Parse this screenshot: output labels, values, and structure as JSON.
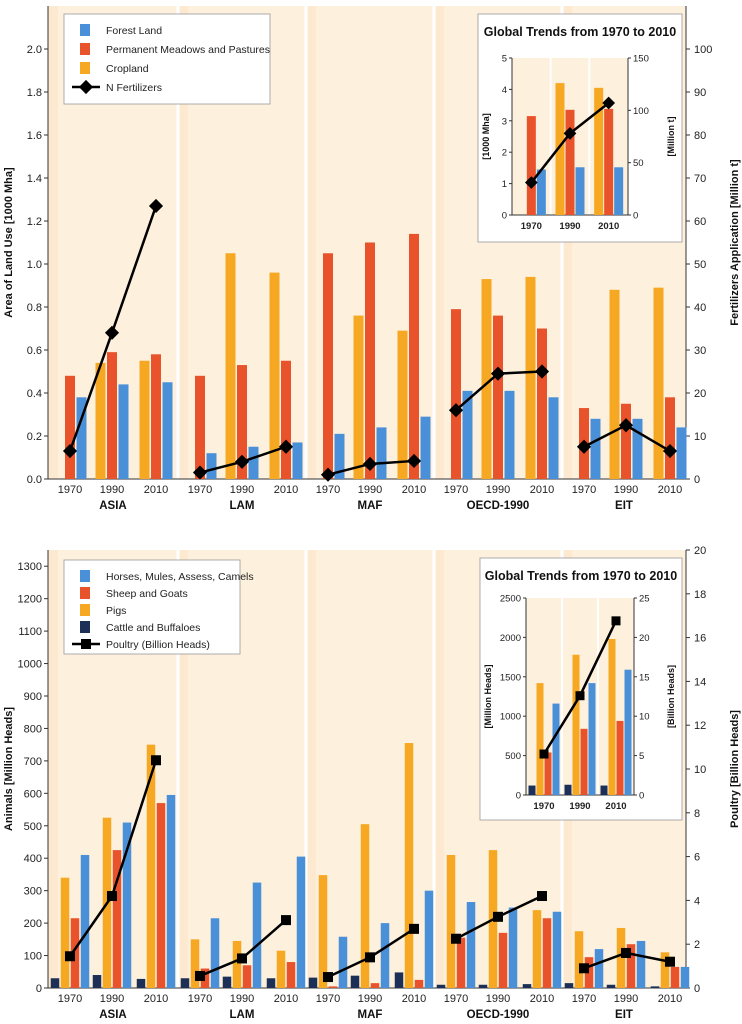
{
  "chart_data": [
    {
      "type": "bar",
      "panel": "land_use",
      "ylabel": "Area of Land Use [1000 Mha]",
      "y2label": "Fertilizers Application [Million t]",
      "ylim": [
        0,
        2.2
      ],
      "yticks": [
        "0.0",
        "0.2",
        "0.4",
        "0.6",
        "0.8",
        "1.0",
        "1.2",
        "1.4",
        "1.6",
        "1.8",
        "2.0"
      ],
      "y2lim": [
        0,
        110
      ],
      "y2ticks": [
        "0",
        "10",
        "20",
        "30",
        "40",
        "50",
        "60",
        "70",
        "80",
        "90",
        "100"
      ],
      "years": [
        "1970",
        "1990",
        "2010"
      ],
      "legend": [
        {
          "name": "Forest Land",
          "color": "#4a90d9"
        },
        {
          "name": "Permanent Meadows and Pastures",
          "color": "#e8532b"
        },
        {
          "name": "Cropland",
          "color": "#f7a823"
        },
        {
          "name": "N Fertilizers",
          "color": "#000000"
        }
      ],
      "regions": [
        {
          "name": "ASIA",
          "bars": [
            [
              0.38,
              0.48,
              null
            ],
            [
              0.44,
              0.59,
              0.54
            ],
            [
              0.45,
              0.58,
              0.55
            ]
          ],
          "line": [
            6.5,
            34,
            63.5
          ]
        },
        {
          "name": "LAM",
          "bars": [
            [
              0.12,
              0.48,
              null
            ],
            [
              0.15,
              0.53,
              1.05
            ],
            [
              0.17,
              0.55,
              0.96
            ]
          ],
          "line": [
            1.5,
            4,
            7.5
          ]
        },
        {
          "name": "MAF",
          "bars": [
            [
              0.21,
              1.05,
              null
            ],
            [
              0.24,
              1.1,
              0.76
            ],
            [
              0.29,
              1.14,
              0.69
            ]
          ],
          "line": [
            1.0,
            3.5,
            4.2
          ]
        },
        {
          "name": "OECD-1990",
          "bars": [
            [
              0.41,
              0.79,
              null
            ],
            [
              0.41,
              0.76,
              0.93
            ],
            [
              0.38,
              0.7,
              0.94
            ]
          ],
          "line": [
            16,
            24.5,
            25
          ]
        },
        {
          "name": "EIT",
          "bars": [
            [
              0.28,
              0.33,
              null
            ],
            [
              0.28,
              0.35,
              0.88
            ],
            [
              0.24,
              0.38,
              0.89
            ]
          ],
          "line": [
            7.5,
            12.5,
            6.5
          ]
        }
      ],
      "inset": {
        "title": "Global Trends from 1970 to 2010",
        "ylabel": "[1000 Mha]",
        "y2label": "[Million t]",
        "ylim": [
          0,
          5
        ],
        "yticks": [
          "0",
          "1",
          "2",
          "3",
          "4",
          "5"
        ],
        "y2lim": [
          0,
          150
        ],
        "y2ticks": [
          "0",
          "50",
          "100",
          "150"
        ],
        "bars": [
          [
            1.45,
            3.15,
            null
          ],
          [
            1.52,
            3.35,
            4.2
          ],
          [
            1.52,
            3.38,
            4.05
          ]
        ],
        "line": [
          31,
          78,
          107
        ]
      }
    },
    {
      "type": "bar",
      "panel": "livestock",
      "ylabel": "Animals [Million Heads]",
      "y2label": "Poultry [Billion Heads]",
      "ylim": [
        0,
        1350
      ],
      "yticks": [
        "0",
        "100",
        "200",
        "300",
        "400",
        "500",
        "600",
        "700",
        "800",
        "900",
        "1000",
        "1100",
        "1200",
        "1300"
      ],
      "y2lim": [
        0,
        20
      ],
      "y2ticks": [
        "0",
        "2",
        "4",
        "6",
        "8",
        "10",
        "12",
        "14",
        "16",
        "18",
        "20"
      ],
      "years": [
        "1970",
        "1990",
        "2010"
      ],
      "legend": [
        {
          "name": "Horses, Mules, Assess, Camels",
          "color": "#4a90d9"
        },
        {
          "name": "Sheep and Goats",
          "color": "#e8532b"
        },
        {
          "name": "Pigs",
          "color": "#f7a823"
        },
        {
          "name": "Cattle and Buffaloes",
          "color": "#1b2f57"
        },
        {
          "name": "Poultry (Billion Heads)",
          "color": "#000000"
        }
      ],
      "regions": [
        {
          "name": "ASIA",
          "bars": [
            [
              410,
              215,
              340,
              30
            ],
            [
              510,
              425,
              525,
              40
            ],
            [
              595,
              570,
              750,
              28
            ]
          ],
          "line": [
            1.45,
            4.2,
            10.4
          ]
        },
        {
          "name": "LAM",
          "bars": [
            [
              215,
              60,
              150,
              30
            ],
            [
              325,
              70,
              145,
              35
            ],
            [
              405,
              80,
              115,
              30
            ]
          ],
          "line": [
            0.55,
            1.35,
            3.1
          ]
        },
        {
          "name": "MAF",
          "bars": [
            [
              158,
              5,
              348,
              32
            ],
            [
              200,
              15,
              505,
              38
            ],
            [
              300,
              25,
              755,
              48
            ]
          ],
          "line": [
            0.5,
            1.4,
            2.7
          ]
        },
        {
          "name": "OECD-1990",
          "bars": [
            [
              265,
              155,
              410,
              10
            ],
            [
              248,
              170,
              425,
              10
            ],
            [
              235,
              215,
              240,
              12
            ]
          ],
          "line": [
            2.25,
            3.25,
            4.2
          ]
        },
        {
          "name": "EIT",
          "bars": [
            [
              120,
              95,
              175,
              15
            ],
            [
              145,
              135,
              185,
              10
            ],
            [
              65,
              65,
              110,
              5
            ]
          ],
          "line": [
            0.9,
            1.6,
            1.2
          ]
        }
      ],
      "inset": {
        "title": "Global Trends from 1970 to 2010",
        "ylabel": "[Million Heads]",
        "y2label": "[Billion Heads]",
        "ylim": [
          0,
          2500
        ],
        "yticks": [
          "0",
          "500",
          "1000",
          "1500",
          "2000",
          "2500"
        ],
        "y2lim": [
          0,
          25
        ],
        "y2ticks": [
          "0",
          "5",
          "10",
          "15",
          "20",
          "25"
        ],
        "bars": [
          [
            1160,
            540,
            1420,
            120
          ],
          [
            1420,
            840,
            1780,
            130
          ],
          [
            1590,
            940,
            1980,
            120
          ]
        ],
        "line": [
          5.2,
          12.6,
          22.1
        ]
      }
    }
  ]
}
